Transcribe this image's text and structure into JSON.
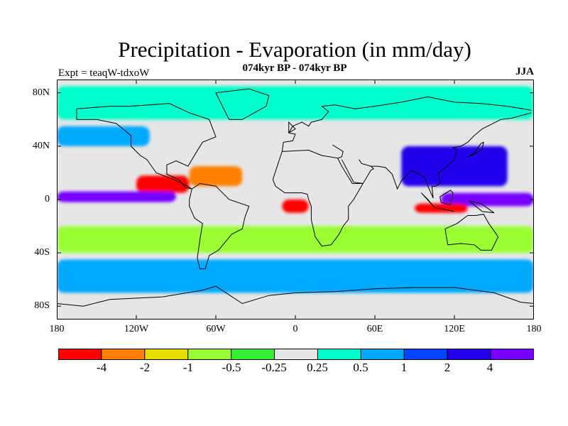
{
  "header": {
    "title": "Precipitation - Evaporation (in mm/day)",
    "subtitle": "074kyr BP - 074kyr BP",
    "left_label": "Expt = teaqW-tdxoW",
    "right_label": "JJA"
  },
  "axes": {
    "lat_ticks": [
      "80N",
      "40N",
      "0",
      "40S",
      "80S"
    ],
    "lon_ticks": [
      "180",
      "120W",
      "60W",
      "0",
      "60E",
      "120E",
      "180"
    ]
  },
  "colorbar": {
    "labels": [
      "-4",
      "-2",
      "-1",
      "-0.5",
      "-0.25",
      "0.25",
      "0.5",
      "1",
      "2",
      "4"
    ],
    "colors": [
      "#ff0000",
      "#ff8000",
      "#e6dd00",
      "#99ff33",
      "#33ee33",
      "#e6e6e6",
      "#00ffcc",
      "#00aaff",
      "#0044ff",
      "#2200ee",
      "#7700ff"
    ]
  },
  "chart_data": {
    "type": "heatmap",
    "title": "Precipitation - Evaporation (in mm/day)",
    "subtitle": "074kyr BP - 074kyr BP",
    "season": "JJA",
    "experiment": "Expt = teaqW-tdxoW",
    "xlim": [
      -180,
      180
    ],
    "ylim": [
      -90,
      90
    ],
    "levels": [
      -4,
      -2,
      -1,
      -0.5,
      -0.25,
      0.25,
      0.5,
      1,
      2,
      4
    ],
    "regions": [
      {
        "lon_min": -180,
        "lon_max": 180,
        "lat_min": 60,
        "lat_max": 85,
        "level_index": 6
      },
      {
        "lon_min": -180,
        "lon_max": -110,
        "lat_min": 40,
        "lat_max": 55,
        "level_index": 7
      },
      {
        "lon_min": -120,
        "lon_max": -80,
        "lat_min": 5,
        "lat_max": 18,
        "level_index": 0
      },
      {
        "lon_min": -80,
        "lon_max": -40,
        "lat_min": 10,
        "lat_max": 25,
        "level_index": 1
      },
      {
        "lon_min": -180,
        "lon_max": -90,
        "lat_min": -2,
        "lat_max": 6,
        "level_index": 10
      },
      {
        "lon_min": -10,
        "lon_max": 10,
        "lat_min": -10,
        "lat_max": 0,
        "level_index": 0
      },
      {
        "lon_min": 80,
        "lon_max": 160,
        "lat_min": 10,
        "lat_max": 40,
        "level_index": 9
      },
      {
        "lon_min": 110,
        "lon_max": 180,
        "lat_min": -5,
        "lat_max": 5,
        "level_index": 10
      },
      {
        "lon_min": 90,
        "lon_max": 130,
        "lat_min": -10,
        "lat_max": -3,
        "level_index": 0
      },
      {
        "lon_min": -180,
        "lon_max": 180,
        "lat_min": -70,
        "lat_max": -45,
        "level_index": 7
      },
      {
        "lon_min": -180,
        "lon_max": 180,
        "lat_min": -40,
        "lat_max": -20,
        "level_index": 3
      }
    ]
  }
}
